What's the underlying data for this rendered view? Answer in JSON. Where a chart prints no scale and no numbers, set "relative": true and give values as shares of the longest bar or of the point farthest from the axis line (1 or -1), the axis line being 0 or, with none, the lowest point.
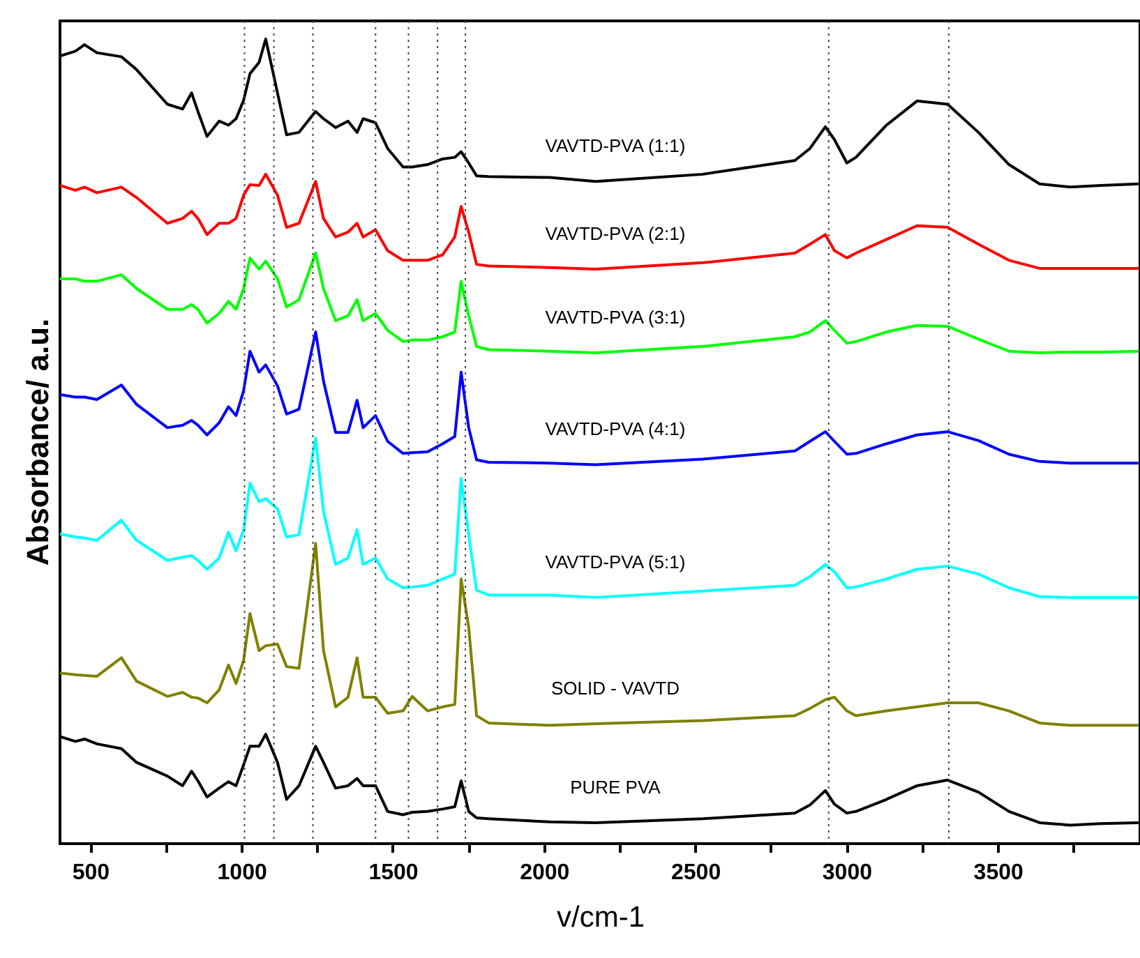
{
  "chart_data": {
    "type": "line",
    "relative": true,
    "xlabel": "v/cm-1",
    "ylabel": "Absorbance/ a.u.",
    "legend": false,
    "grid": false,
    "xlim": [
      400,
      3970
    ],
    "xticks": [
      500,
      {
        "value": 750,
        "label": null
      },
      1000,
      {
        "value": 1250,
        "label": null
      },
      1500,
      {
        "value": 1750,
        "label": null
      },
      2000,
      {
        "value": 2250,
        "label": null
      },
      2500,
      {
        "value": 2750,
        "label": null
      },
      3000,
      {
        "value": 3250,
        "label": null
      },
      3500,
      {
        "value": 3750,
        "label": null
      }
    ],
    "x": [
      400,
      451,
      481,
      522,
      603,
      653,
      755,
      805,
      835,
      856,
      886,
      926,
      957,
      982,
      1007,
      1028,
      1058,
      1080,
      1119,
      1149,
      1190,
      1245,
      1271,
      1311,
      1352,
      1382,
      1402,
      1443,
      1483,
      1534,
      1564,
      1615,
      1665,
      1705,
      1726,
      1751,
      1777,
      1817,
      2019,
      2171,
      2525,
      2829,
      2879,
      2930,
      2960,
      3001,
      3031,
      3132,
      3233,
      3334,
      3436,
      3537,
      3638,
      3739,
      3840,
      3965
    ],
    "series": [
      {
        "name": "VAVTD-PVA (1:1)",
        "color": "#000000",
        "values": [
          0.979,
          0.985,
          0.993,
          0.983,
          0.978,
          0.962,
          0.919,
          0.913,
          0.933,
          0.91,
          0.879,
          0.898,
          0.893,
          0.901,
          0.924,
          0.957,
          0.971,
          1,
          0.933,
          0.881,
          0.884,
          0.91,
          0.901,
          0.89,
          0.898,
          0.884,
          0.901,
          0.896,
          0.864,
          0.841,
          0.841,
          0.844,
          0.851,
          0.853,
          0.86,
          0.846,
          0.83,
          0.829,
          0.828,
          0.823,
          0.832,
          0.849,
          0.864,
          0.891,
          0.875,
          0.846,
          0.853,
          0.893,
          0.923,
          0.919,
          0.884,
          0.844,
          0.82,
          0.816,
          0.818,
          0.82
        ]
      },
      {
        "name": "VAVTD-PVA (2:1)",
        "color": "#ff0000",
        "values": [
          0.818,
          0.812,
          0.816,
          0.809,
          0.816,
          0.803,
          0.771,
          0.777,
          0.786,
          0.777,
          0.757,
          0.771,
          0.771,
          0.777,
          0.806,
          0.819,
          0.818,
          0.832,
          0.806,
          0.766,
          0.771,
          0.823,
          0.777,
          0.754,
          0.76,
          0.771,
          0.754,
          0.763,
          0.737,
          0.725,
          0.725,
          0.725,
          0.732,
          0.754,
          0.792,
          0.76,
          0.72,
          0.718,
          0.716,
          0.714,
          0.722,
          0.734,
          0.745,
          0.757,
          0.737,
          0.728,
          0.734,
          0.751,
          0.768,
          0.766,
          0.745,
          0.725,
          0.715,
          0.715,
          0.715,
          0.715
        ]
      },
      {
        "name": "VAVTD-PVA (3:1)",
        "color": "#00ff00",
        "values": [
          0.702,
          0.702,
          0.699,
          0.699,
          0.707,
          0.69,
          0.664,
          0.664,
          0.67,
          0.664,
          0.647,
          0.659,
          0.674,
          0.664,
          0.69,
          0.728,
          0.714,
          0.724,
          0.702,
          0.667,
          0.676,
          0.734,
          0.69,
          0.65,
          0.656,
          0.676,
          0.65,
          0.659,
          0.638,
          0.624,
          0.626,
          0.626,
          0.63,
          0.636,
          0.699,
          0.656,
          0.618,
          0.614,
          0.612,
          0.61,
          0.618,
          0.63,
          0.636,
          0.65,
          0.638,
          0.622,
          0.624,
          0.636,
          0.644,
          0.643,
          0.627,
          0.612,
          0.61,
          0.611,
          0.611,
          0.612
        ]
      },
      {
        "name": "VAVTD-PVA (4:1)",
        "color": "#0000ff",
        "values": [
          0.558,
          0.555,
          0.555,
          0.552,
          0.57,
          0.546,
          0.517,
          0.52,
          0.526,
          0.52,
          0.508,
          0.523,
          0.543,
          0.532,
          0.563,
          0.612,
          0.586,
          0.595,
          0.569,
          0.534,
          0.54,
          0.636,
          0.575,
          0.511,
          0.511,
          0.551,
          0.517,
          0.532,
          0.5,
          0.485,
          0.486,
          0.487,
          0.497,
          0.506,
          0.586,
          0.517,
          0.477,
          0.474,
          0.473,
          0.471,
          0.478,
          0.488,
          0.5,
          0.512,
          0.5,
          0.484,
          0.485,
          0.497,
          0.508,
          0.512,
          0.501,
          0.484,
          0.475,
          0.473,
          0.473,
          0.473
        ]
      },
      {
        "name": "VAVTD-PVA (5:1)",
        "color": "#00ffff",
        "values": [
          0.385,
          0.381,
          0.38,
          0.377,
          0.402,
          0.377,
          0.352,
          0.356,
          0.358,
          0.352,
          0.341,
          0.355,
          0.387,
          0.364,
          0.39,
          0.448,
          0.425,
          0.429,
          0.416,
          0.381,
          0.384,
          0.504,
          0.413,
          0.347,
          0.355,
          0.39,
          0.347,
          0.355,
          0.329,
          0.318,
          0.319,
          0.321,
          0.329,
          0.335,
          0.454,
          0.384,
          0.315,
          0.309,
          0.309,
          0.306,
          0.314,
          0.321,
          0.332,
          0.347,
          0.338,
          0.318,
          0.319,
          0.329,
          0.341,
          0.345,
          0.335,
          0.318,
          0.307,
          0.306,
          0.306,
          0.306
        ]
      },
      {
        "name": "SOLID - VAVTD",
        "color": "#808000",
        "values": [
          0.212,
          0.21,
          0.209,
          0.208,
          0.231,
          0.202,
          0.183,
          0.188,
          0.182,
          0.181,
          0.175,
          0.191,
          0.222,
          0.199,
          0.228,
          0.286,
          0.24,
          0.246,
          0.248,
          0.22,
          0.218,
          0.373,
          0.24,
          0.17,
          0.182,
          0.231,
          0.182,
          0.182,
          0.162,
          0.165,
          0.183,
          0.165,
          0.17,
          0.173,
          0.329,
          0.269,
          0.159,
          0.15,
          0.147,
          0.149,
          0.153,
          0.159,
          0.168,
          0.179,
          0.182,
          0.165,
          0.159,
          0.165,
          0.17,
          0.175,
          0.175,
          0.165,
          0.15,
          0.147,
          0.147,
          0.147
        ]
      },
      {
        "name": "PURE PVA",
        "color": "#000000",
        "values": [
          0.133,
          0.127,
          0.13,
          0.124,
          0.118,
          0.101,
          0.084,
          0.072,
          0.09,
          0.078,
          0.058,
          0.069,
          0.077,
          0.072,
          0.098,
          0.121,
          0.121,
          0.136,
          0.101,
          0.055,
          0.072,
          0.121,
          0.101,
          0.069,
          0.072,
          0.081,
          0.072,
          0.072,
          0.04,
          0.036,
          0.039,
          0.04,
          0.043,
          0.046,
          0.078,
          0.04,
          0.032,
          0.031,
          0.027,
          0.026,
          0.031,
          0.038,
          0.048,
          0.066,
          0.049,
          0.038,
          0.04,
          0.055,
          0.072,
          0.079,
          0.064,
          0.04,
          0.026,
          0.023,
          0.025,
          0.026
        ]
      }
    ],
    "ref_lines": [
      {
        "axis": "x",
        "value": 1010,
        "line_style": "dotted",
        "color": "#444444"
      },
      {
        "axis": "x",
        "value": 1107,
        "line_style": "dotted",
        "color": "#444444"
      },
      {
        "axis": "x",
        "value": 1236,
        "line_style": "dotted",
        "color": "#444444"
      },
      {
        "axis": "x",
        "value": 1443,
        "line_style": "dotted",
        "color": "#444444"
      },
      {
        "axis": "x",
        "value": 1552,
        "line_style": "dotted",
        "color": "#444444"
      },
      {
        "axis": "x",
        "value": 1648,
        "line_style": "dotted",
        "color": "#444444"
      },
      {
        "axis": "x",
        "value": 1740,
        "line_style": "dotted",
        "color": "#444444"
      },
      {
        "axis": "x",
        "value": 2941,
        "line_style": "dotted",
        "color": "#444444"
      },
      {
        "axis": "x",
        "value": 3338,
        "line_style": "dotted",
        "color": "#444444"
      }
    ]
  }
}
